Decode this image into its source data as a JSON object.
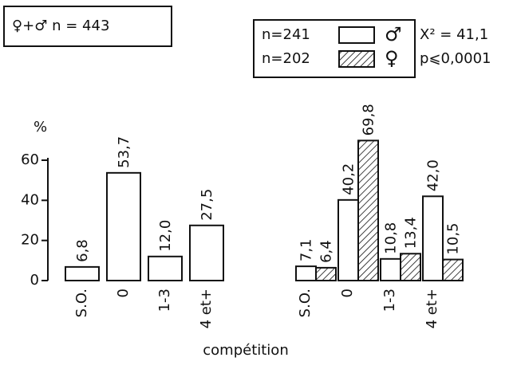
{
  "chart_data": [
    {
      "type": "bar",
      "annotation": "♀+♂ n = 443",
      "y_label": "%",
      "categories": [
        "S.O.",
        "0",
        "1-3",
        "4 et+"
      ],
      "values": [
        6.8,
        53.7,
        12.0,
        27.5
      ],
      "value_labels": [
        "6,8",
        "53,7",
        "12,0",
        "27,5"
      ],
      "color": "#ffffff",
      "ylim": [
        0,
        60
      ],
      "yticks": [
        0,
        20,
        40,
        60
      ]
    },
    {
      "type": "grouped-bar",
      "x_label": "compétition",
      "statistics": [
        "X² = 41,1",
        "p⩽0,0001"
      ],
      "categories": [
        "S.O.",
        "0",
        "1-3",
        "4 et+"
      ],
      "series": [
        {
          "name": "♂",
          "label": "n=241",
          "color": "#ffffff",
          "hatch": false,
          "values": [
            7.1,
            40.2,
            10.8,
            42.0
          ],
          "value_labels": [
            "7,1",
            "40,2",
            "10,8",
            "42,0"
          ]
        },
        {
          "name": "♀",
          "label": "n=202",
          "color": "#ffffff",
          "hatch": true,
          "values": [
            6.4,
            69.8,
            13.4,
            10.5
          ],
          "value_labels": [
            "6,4",
            "69,8",
            "13,4",
            "10,5"
          ]
        }
      ],
      "ylim": [
        0,
        60
      ]
    }
  ]
}
